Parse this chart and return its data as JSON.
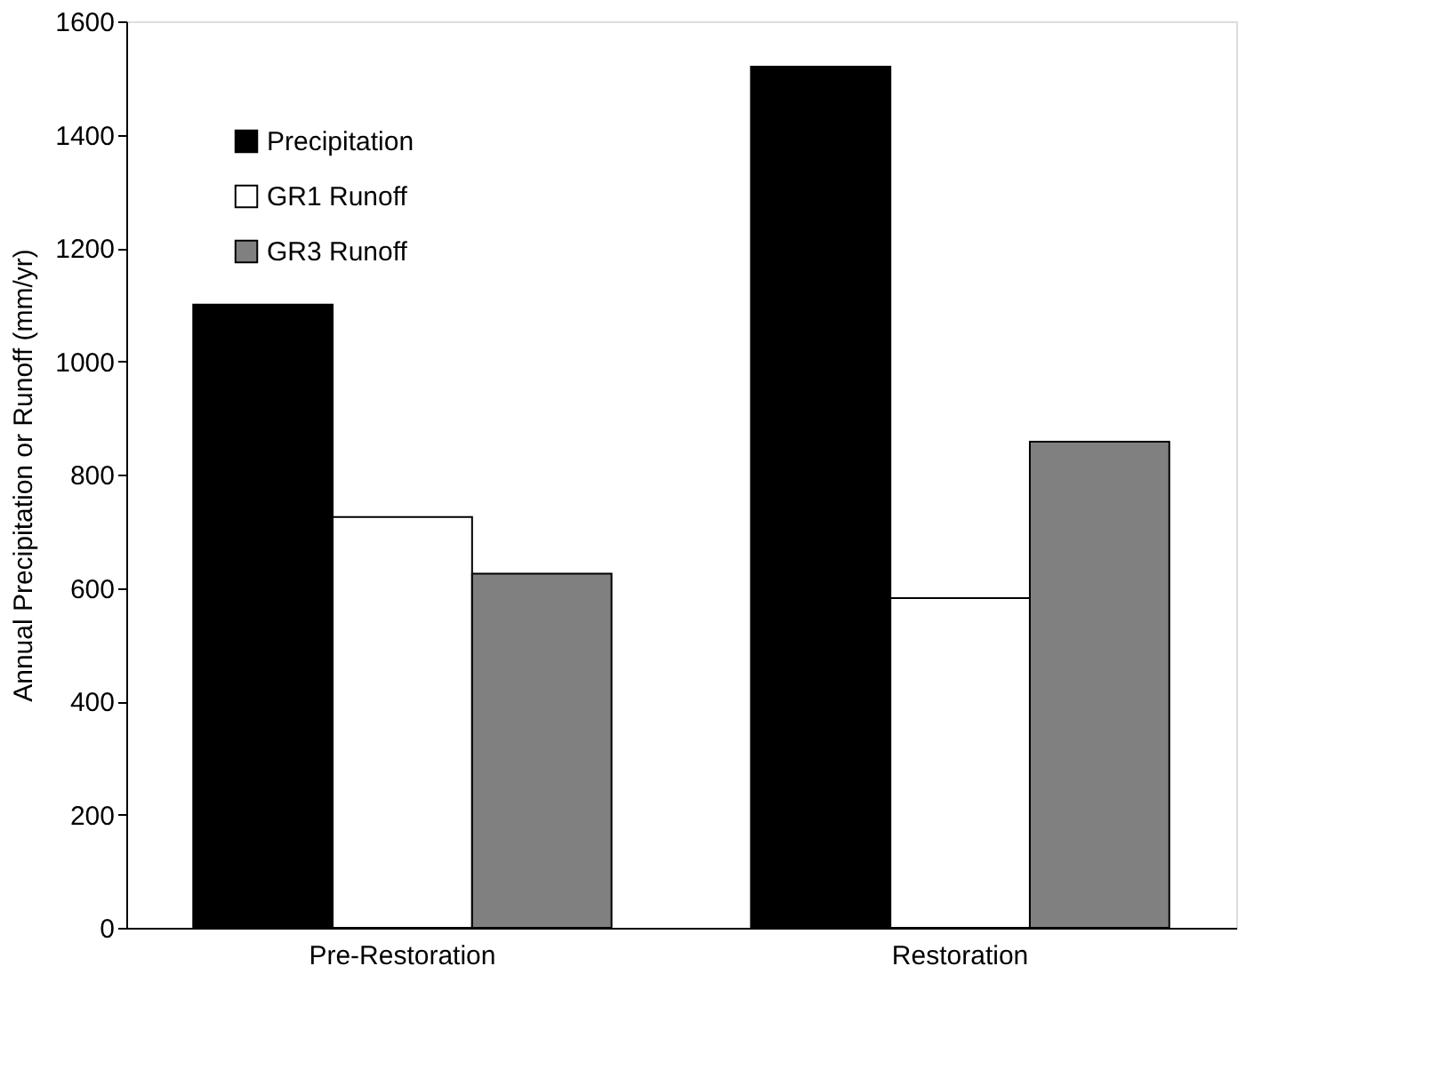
{
  "chart_data": {
    "type": "bar",
    "ylabel": "Annual Precipitation or Runoff (mm/yr)",
    "categories": [
      "Pre-Restoration",
      "Restoration"
    ],
    "series": [
      {
        "name": "Precipitation",
        "color": "#000000",
        "values": [
          1100,
          1520
        ]
      },
      {
        "name": "GR1 Runoff",
        "color": "#ffffff",
        "values": [
          725,
          582
        ]
      },
      {
        "name": "GR3 Runoff",
        "color": "#808080",
        "values": [
          625,
          858
        ]
      }
    ],
    "ylim": [
      0,
      1600
    ],
    "yticks": [
      0,
      200,
      400,
      600,
      800,
      1000,
      1200,
      1400,
      1600
    ],
    "grid": false,
    "legend": "top left"
  }
}
